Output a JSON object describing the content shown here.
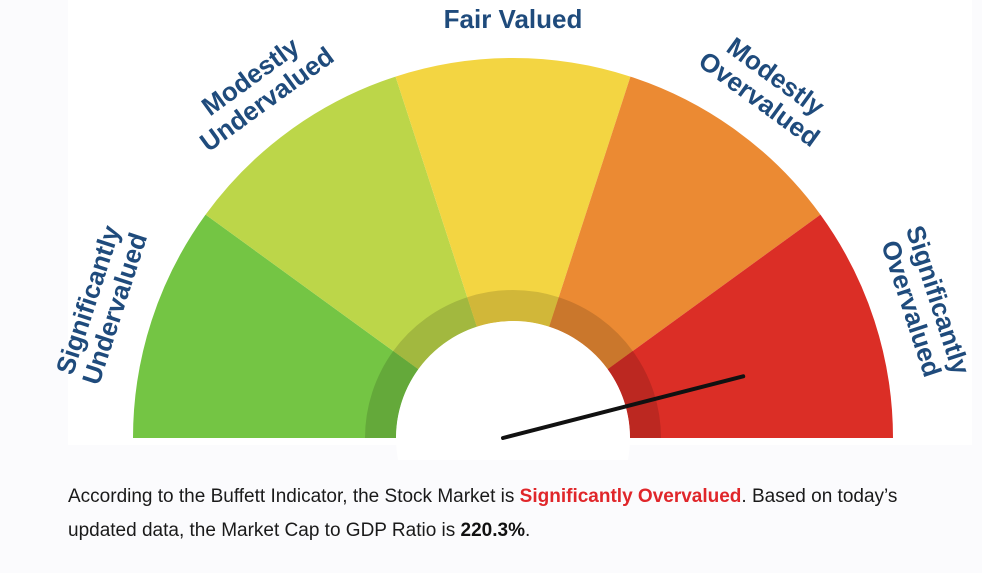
{
  "chart_data": {
    "type": "gauge",
    "zones": [
      {
        "label_lines": [
          "Significantly",
          "Undervalued"
        ],
        "color": "#74c544"
      },
      {
        "label_lines": [
          "Modestly",
          "Undervalued"
        ],
        "color": "#bcd649"
      },
      {
        "label_lines": [
          "Fair Valued"
        ],
        "color": "#f3d542"
      },
      {
        "label_lines": [
          "Modestly",
          "Overvalued"
        ],
        "color": "#eb8a33"
      },
      {
        "label_lines": [
          "Significantly",
          "Overvalued"
        ],
        "color": "#db2e26"
      }
    ],
    "needle_zone": "Significantly Overvalued",
    "needle_value": 0.92,
    "needle_color": "#111111",
    "label_color": "#1f4b7c"
  },
  "caption": {
    "part1": "According to the Buffett Indicator, the Stock Market is ",
    "verdict": "Significantly Overvalued",
    "part2": ". Based on today’s updated data, the Market Cap to GDP Ratio is ",
    "ratio": "220.3%",
    "part3": "."
  },
  "colors": {
    "verdict": "#e0262a",
    "text": "#1a1a1a"
  }
}
